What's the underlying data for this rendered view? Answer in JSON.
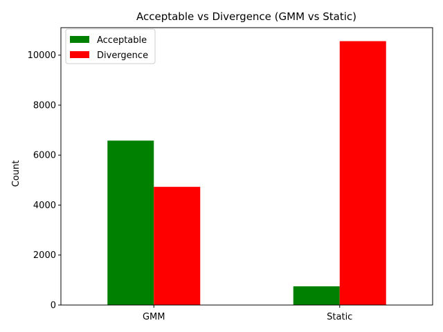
{
  "chart_data": {
    "type": "bar",
    "title": "Acceptable vs Divergence (GMM vs Static)",
    "xlabel": "",
    "ylabel": "Count",
    "categories": [
      "GMM",
      "Static"
    ],
    "series": [
      {
        "name": "Acceptable",
        "color": "#008000",
        "values": [
          6580,
          750
        ]
      },
      {
        "name": "Divergence",
        "color": "#ff0000",
        "values": [
          4730,
          10560
        ]
      }
    ],
    "ylim": [
      0,
      11100
    ],
    "yticks": [
      0,
      2000,
      4000,
      6000,
      8000,
      10000
    ],
    "ytick_labels": [
      "0",
      "2000",
      "4000",
      "6000",
      "8000",
      "10000"
    ],
    "grid": false,
    "legend_position": "upper-left"
  }
}
